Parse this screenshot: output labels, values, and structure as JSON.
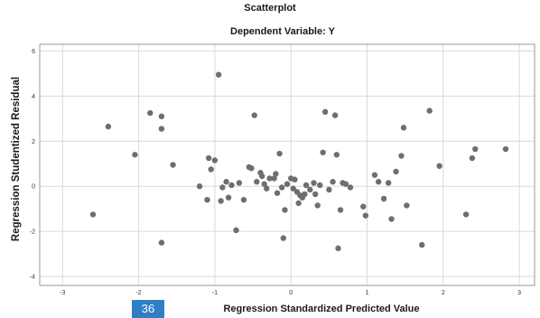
{
  "page_badge": "36",
  "chart_data": {
    "type": "scatter",
    "title": "Scatterplot",
    "subtitle": "Dependent Variable: Y",
    "xlabel": "Regression Standardized Predicted Value",
    "ylabel": "Regression Studentized Residual",
    "xlim": [
      -3.3,
      3.2
    ],
    "ylim": [
      -4.4,
      6.3
    ],
    "x_ticks": [
      -3,
      -2,
      -1,
      0,
      1,
      2,
      3
    ],
    "y_ticks": [
      -4,
      -2,
      0,
      2,
      4,
      6
    ],
    "grid": true,
    "colors": {
      "marker": "#6e6e6e",
      "grid": "#d9d9d9",
      "frame": "#9a9a9a"
    },
    "points": [
      [
        -2.6,
        -1.25
      ],
      [
        -2.4,
        2.65
      ],
      [
        -2.05,
        1.4
      ],
      [
        -1.85,
        3.25
      ],
      [
        -1.7,
        3.1
      ],
      [
        -1.7,
        2.55
      ],
      [
        -1.7,
        -2.5
      ],
      [
        -1.55,
        0.95
      ],
      [
        -1.2,
        0.0
      ],
      [
        -1.1,
        -0.6
      ],
      [
        -1.08,
        1.25
      ],
      [
        -1.05,
        0.75
      ],
      [
        -1.0,
        1.15
      ],
      [
        -0.92,
        -0.65
      ],
      [
        -0.95,
        4.95
      ],
      [
        -0.9,
        -0.05
      ],
      [
        -0.85,
        0.2
      ],
      [
        -0.82,
        -0.5
      ],
      [
        -0.78,
        0.05
      ],
      [
        -0.72,
        -1.95
      ],
      [
        -0.68,
        0.15
      ],
      [
        -0.62,
        -0.6
      ],
      [
        -0.55,
        0.85
      ],
      [
        -0.52,
        0.8
      ],
      [
        -0.48,
        3.15
      ],
      [
        -0.45,
        0.2
      ],
      [
        -0.4,
        0.6
      ],
      [
        -0.38,
        0.45
      ],
      [
        -0.35,
        0.1
      ],
      [
        -0.32,
        -0.1
      ],
      [
        -0.28,
        0.35
      ],
      [
        -0.22,
        0.35
      ],
      [
        -0.2,
        0.55
      ],
      [
        -0.18,
        -0.3
      ],
      [
        -0.15,
        1.45
      ],
      [
        -0.12,
        -0.05
      ],
      [
        -0.1,
        -2.3
      ],
      [
        -0.08,
        -1.05
      ],
      [
        -0.05,
        0.1
      ],
      [
        0.0,
        0.35
      ],
      [
        0.03,
        -0.1
      ],
      [
        0.05,
        0.3
      ],
      [
        0.08,
        -0.25
      ],
      [
        0.1,
        -0.75
      ],
      [
        0.12,
        -0.4
      ],
      [
        0.15,
        -0.5
      ],
      [
        0.18,
        -0.35
      ],
      [
        0.2,
        0.05
      ],
      [
        0.25,
        -0.15
      ],
      [
        0.3,
        0.15
      ],
      [
        0.32,
        -0.35
      ],
      [
        0.35,
        -0.85
      ],
      [
        0.38,
        0.05
      ],
      [
        0.42,
        1.5
      ],
      [
        0.45,
        3.3
      ],
      [
        0.5,
        -0.15
      ],
      [
        0.55,
        0.2
      ],
      [
        0.58,
        3.15
      ],
      [
        0.6,
        1.4
      ],
      [
        0.62,
        -2.75
      ],
      [
        0.65,
        -1.05
      ],
      [
        0.68,
        0.15
      ],
      [
        0.72,
        0.1
      ],
      [
        0.78,
        -0.05
      ],
      [
        0.95,
        -0.9
      ],
      [
        0.98,
        -1.3
      ],
      [
        1.1,
        0.5
      ],
      [
        1.15,
        0.2
      ],
      [
        1.22,
        -0.55
      ],
      [
        1.28,
        0.15
      ],
      [
        1.32,
        -1.45
      ],
      [
        1.38,
        0.65
      ],
      [
        1.45,
        1.35
      ],
      [
        1.48,
        2.6
      ],
      [
        1.52,
        -0.85
      ],
      [
        1.72,
        -2.6
      ],
      [
        1.82,
        3.35
      ],
      [
        1.95,
        0.9
      ],
      [
        2.3,
        -1.25
      ],
      [
        2.38,
        1.25
      ],
      [
        2.42,
        1.65
      ],
      [
        2.82,
        1.65
      ]
    ]
  }
}
